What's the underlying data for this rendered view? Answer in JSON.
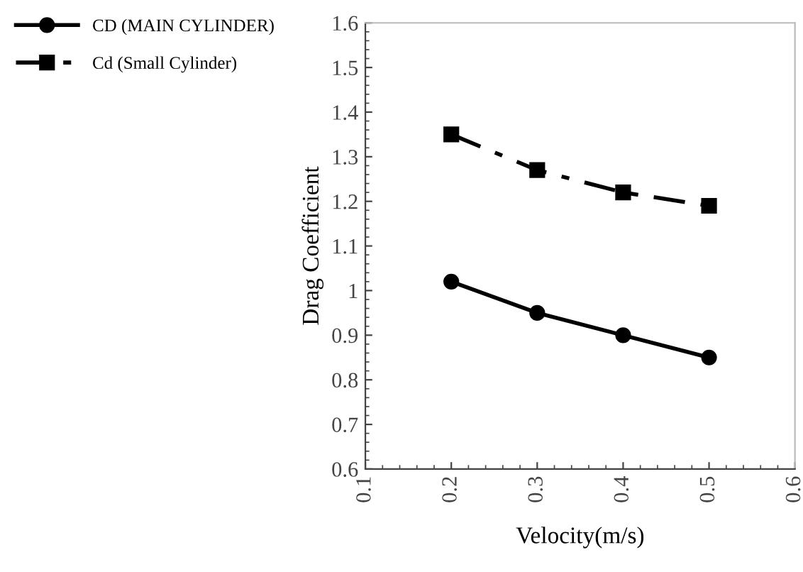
{
  "chart_data": {
    "type": "line",
    "xlabel": "Velocity(m/s)",
    "ylabel": "Drag Coefficient",
    "x": [
      0.2,
      0.3,
      0.4,
      0.5
    ],
    "series": [
      {
        "name": "CD (MAIN CYLINDER)",
        "color": "#000000",
        "values": [
          1.02,
          0.95,
          0.9,
          0.85
        ],
        "marker": "circle",
        "line_style": "solid"
      },
      {
        "name": "Cd (Small Cylinder)",
        "color": "#000000",
        "values": [
          1.35,
          1.27,
          1.22,
          1.19
        ],
        "marker": "square",
        "line_style": "dashed"
      }
    ],
    "xlim": [
      0.1,
      0.6
    ],
    "xticks": [
      0.1,
      0.2,
      0.3,
      0.4,
      0.5,
      0.6
    ],
    "ylim": [
      0.6,
      1.6
    ],
    "yticks": [
      0.6,
      0.7,
      0.8,
      0.9,
      1,
      1.1,
      1.2,
      1.3,
      1.4,
      1.5,
      1.6
    ],
    "grid": false,
    "legend": "top left"
  }
}
